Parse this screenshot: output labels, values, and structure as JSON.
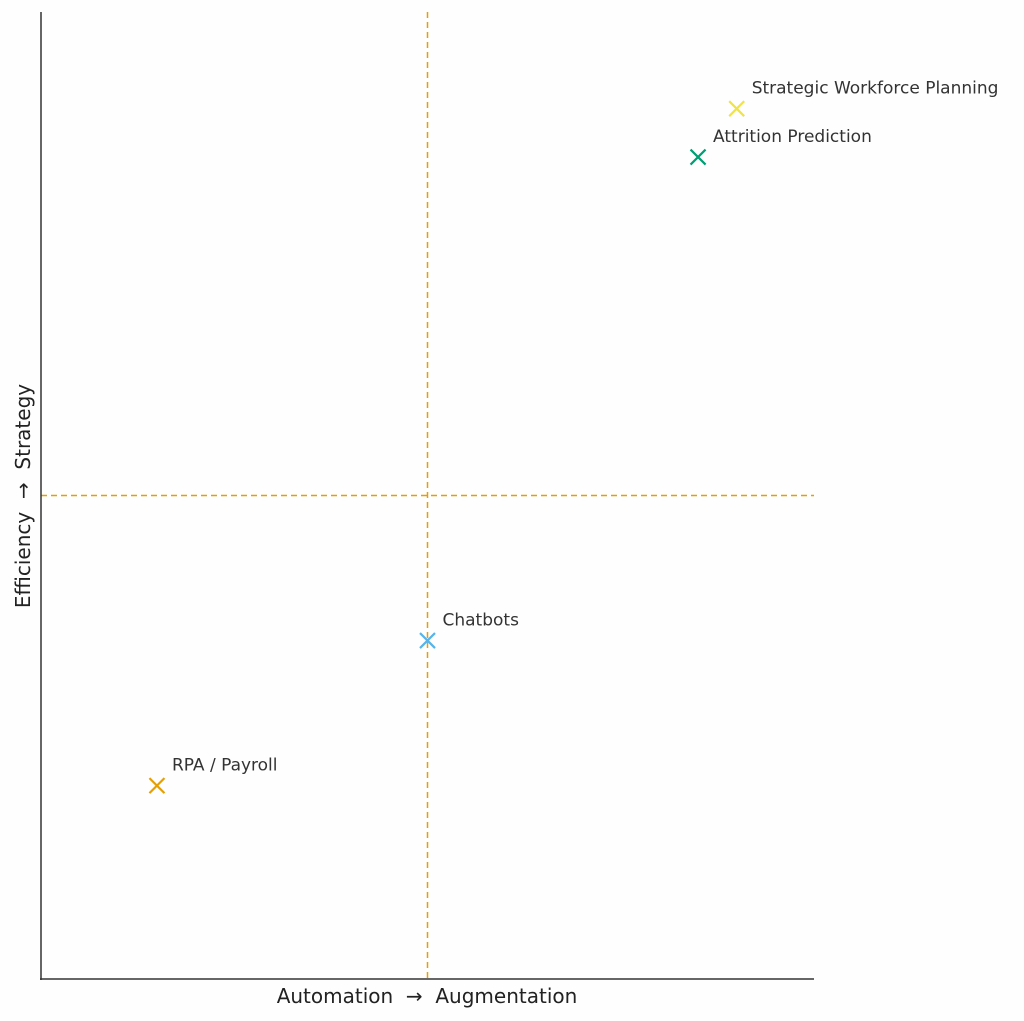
{
  "chart_data": {
    "type": "scatter",
    "title": "",
    "xlabel": "Automation  →  Augmentation",
    "ylabel": "Efficiency  →  Strategy",
    "xlim": [
      0,
      1
    ],
    "ylim": [
      0,
      1
    ],
    "grid": false,
    "reference_lines": {
      "x": 0.5,
      "y": 0.5,
      "color": "#E69F00",
      "style": "dashed"
    },
    "points": [
      {
        "label": "RPA / Payroll",
        "x": 0.15,
        "y": 0.2,
        "color": "#E69F00",
        "marker": "x"
      },
      {
        "label": "Chatbots",
        "x": 0.5,
        "y": 0.35,
        "color": "#56B4E9",
        "marker": "x"
      },
      {
        "label": "Attrition Prediction",
        "x": 0.85,
        "y": 0.85,
        "color": "#009E73",
        "marker": "x"
      },
      {
        "label": "Strategic Workforce Planning",
        "x": 0.9,
        "y": 0.9,
        "color": "#F0E442",
        "marker": "x"
      }
    ]
  }
}
